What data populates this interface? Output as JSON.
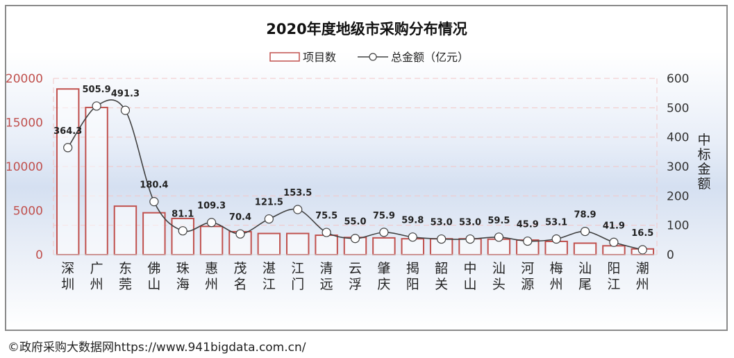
{
  "chart_data": {
    "type": "bar",
    "title": "2020年度地级市采购分布情况",
    "legend": {
      "position": "top-center",
      "bar_label": "项目数",
      "line_label": "总金额（亿元）"
    },
    "categories": [
      "深圳",
      "广州",
      "东莞",
      "佛山",
      "珠海",
      "惠州",
      "茂名",
      "湛江",
      "江门",
      "清远",
      "云浮",
      "肇庆",
      "揭阳",
      "韶关",
      "中山",
      "汕头",
      "河源",
      "梅州",
      "汕尾",
      "阳江",
      "潮州"
    ],
    "series": [
      {
        "name": "项目数",
        "type": "bar",
        "axis": "left",
        "values": [
          18800,
          16700,
          5500,
          4750,
          4100,
          3200,
          2600,
          2400,
          2400,
          2200,
          1950,
          1900,
          1800,
          1800,
          1800,
          1750,
          1650,
          1500,
          1300,
          1000,
          650
        ]
      },
      {
        "name": "总金额（亿元）",
        "type": "line",
        "axis": "right",
        "values": [
          364.3,
          505.9,
          491.3,
          180.4,
          81.1,
          109.3,
          70.4,
          121.5,
          153.5,
          75.5,
          55.0,
          75.9,
          59.8,
          53.0,
          53.0,
          59.5,
          45.9,
          53.1,
          78.9,
          41.9,
          16.5
        ],
        "labels": [
          "364.3",
          "505.9",
          "491.3",
          "180.4",
          "81.1",
          "109.3",
          "70.4",
          "121.5",
          "153.5",
          "75.5",
          "55.0",
          "75.9",
          "59.8",
          "53.0",
          "53.0",
          "59.5",
          "45.9",
          "53.1",
          "78.9",
          "41.9",
          "16.5"
        ]
      }
    ],
    "y_left": {
      "ylim": [
        0,
        20000
      ],
      "ticks": [
        "0",
        "5000",
        "10000",
        "15000",
        "20000"
      ]
    },
    "y_right": {
      "ylim": [
        0,
        600
      ],
      "ticks": [
        "0",
        "100",
        "200",
        "300",
        "400",
        "500",
        "600"
      ],
      "label": "中标金额"
    },
    "grid": true,
    "colors": {
      "bar_stroke": "#c0504d",
      "bar_fill": "rgba(255,255,255,0.55)",
      "line": "#404040",
      "marker_fill": "#ffffff",
      "left_axis_text": "#c0504d",
      "right_axis_text": "#333333",
      "grid": "#f2c6c6"
    }
  },
  "footer": {
    "text": "©政府采购大数据网https://www.941bigdata.com.cn/"
  }
}
